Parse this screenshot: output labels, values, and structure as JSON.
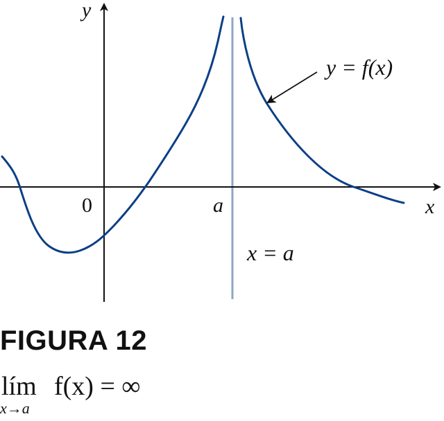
{
  "figure": {
    "y_axis_label": "y",
    "x_axis_label": "x",
    "origin_label": "0",
    "a_label": "a",
    "curve_label": "y = f(x)",
    "asymptote_label": "x = a",
    "curve_color": "#0b3f86",
    "asymptote_color": "#8fa6c6",
    "axis_color": "#111111"
  },
  "caption": {
    "figure_number": "FIGURA 12",
    "lim_word": "lím",
    "lim_subscript": "x→a",
    "lim_expression": "f(x) = ∞"
  }
}
